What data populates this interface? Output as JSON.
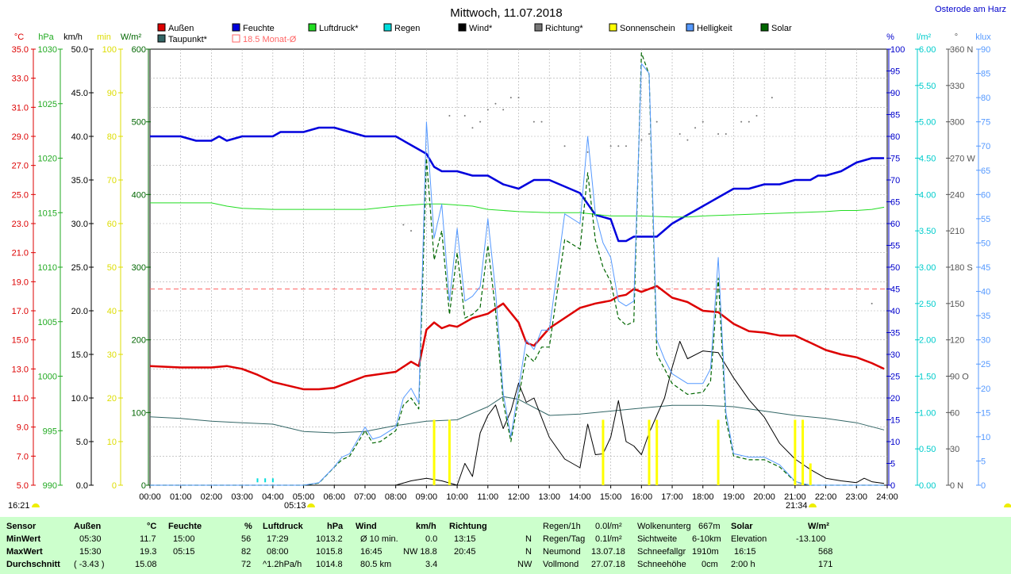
{
  "title": "Mittwoch, 11.07.2018",
  "location": "Osterode am Harz",
  "legend": [
    {
      "label": "Außen",
      "color": "#dd0000"
    },
    {
      "label": "Feuchte",
      "color": "#0000dd"
    },
    {
      "label": "Luftdruck*",
      "color": "#22dd22"
    },
    {
      "label": "Regen",
      "color": "#00dddd"
    },
    {
      "label": "Wind*",
      "color": "#000000"
    },
    {
      "label": "Richtung*",
      "color": "#777777"
    },
    {
      "label": "Sonnenschein",
      "color": "#ffff00"
    },
    {
      "label": "Helligkeit",
      "color": "#5599ff"
    },
    {
      "label": "Solar",
      "color": "#006600"
    },
    {
      "label": "Taupunkt*",
      "color": "#336666"
    },
    {
      "label": "18.5 Monat-Ø",
      "color": "#ff6666"
    }
  ],
  "axis_units": {
    "temp": "°C",
    "pressure": "hPa",
    "wind": "km/h",
    "sun": "min",
    "solar": "W/m²",
    "humidity": "%",
    "rain": "l/m²",
    "direction": "°",
    "light": "klux"
  },
  "axes": {
    "temp": [
      "35.0",
      "33.0",
      "31.0",
      "29.0",
      "27.0",
      "25.0",
      "23.0",
      "21.0",
      "19.0",
      "17.0",
      "15.0",
      "13.0",
      "11.0",
      "9.0",
      "7.0",
      "5.0"
    ],
    "pressure": [
      "1030",
      "1025",
      "1020",
      "1015",
      "1010",
      "1005",
      "1000",
      "995",
      "990"
    ],
    "wind": [
      "50.0",
      "45.0",
      "40.0",
      "35.0",
      "30.0",
      "25.0",
      "20.0",
      "15.0",
      "10.0",
      "5.0",
      "0.0"
    ],
    "sun": [
      "100",
      "90",
      "80",
      "70",
      "60",
      "50",
      "40",
      "30",
      "20",
      "10",
      "0"
    ],
    "solar": [
      "600",
      "500",
      "400",
      "300",
      "200",
      "100",
      "0"
    ],
    "humidity": [
      "100",
      "95",
      "90",
      "85",
      "80",
      "75",
      "70",
      "65",
      "60",
      "55",
      "50",
      "45",
      "40",
      "35",
      "30",
      "25",
      "20",
      "15",
      "10",
      "5",
      "0"
    ],
    "rain": [
      "6.00",
      "5.50",
      "5.00",
      "4.50",
      "4.00",
      "3.50",
      "3.00",
      "2.50",
      "2.00",
      "1.50",
      "1.00",
      "0.50",
      "0.00"
    ],
    "direction": [
      "360 N",
      "330",
      "300",
      "270 W",
      "240",
      "210",
      "180 S",
      "150",
      "120",
      "90 O",
      "60",
      "30",
      "0 N"
    ],
    "light": [
      "90",
      "85",
      "80",
      "75",
      "70",
      "65",
      "60",
      "55",
      "50",
      "45",
      "40",
      "35",
      "30",
      "25",
      "20",
      "15",
      "10",
      "5",
      "0"
    ],
    "time": [
      "00:00",
      "01:00",
      "02:00",
      "03:00",
      "04:00",
      "05:00",
      "06:00",
      "07:00",
      "08:00",
      "09:00",
      "10:00",
      "11:00",
      "12:00",
      "13:00",
      "14:00",
      "15:00",
      "16:00",
      "17:00",
      "18:00",
      "19:00",
      "20:00",
      "21:00",
      "22:00",
      "23:00",
      "24:00"
    ]
  },
  "markers": {
    "now": "16:21",
    "sunrise": "05:13",
    "sunset": "21:34"
  },
  "chart_data": {
    "type": "line",
    "title": "Mittwoch, 11.07.2018",
    "x_unit": "hours",
    "monthly_avg_temp": 18.5,
    "series": [
      {
        "name": "Außen",
        "unit": "°C",
        "color": "#dd0000",
        "x": [
          0,
          1,
          2,
          2.5,
          3,
          3.5,
          4,
          5,
          5.5,
          6,
          6.5,
          7,
          8,
          8.5,
          8.75,
          9,
          9.25,
          9.5,
          9.75,
          10,
          10.25,
          10.5,
          11,
          11.5,
          12,
          12.25,
          12.5,
          13,
          14,
          14.5,
          15,
          15.25,
          15.5,
          15.75,
          16,
          16.5,
          17,
          17.5,
          18,
          18.5,
          19,
          19.5,
          20,
          20.5,
          21,
          21.5,
          22,
          22.5,
          23,
          23.5,
          23.9
        ],
        "y": [
          13.2,
          13.1,
          13.1,
          13.2,
          13.0,
          12.6,
          12.1,
          11.6,
          11.6,
          11.7,
          12.1,
          12.5,
          12.8,
          13.5,
          13.2,
          15.7,
          16.2,
          15.8,
          16.0,
          15.9,
          16.2,
          16.5,
          16.8,
          17.5,
          16.2,
          14.8,
          14.6,
          15.8,
          17.2,
          17.5,
          17.7,
          18.0,
          18.1,
          18.5,
          18.3,
          18.7,
          17.9,
          17.6,
          17.0,
          16.9,
          16.1,
          15.6,
          15.5,
          15.3,
          15.3,
          14.8,
          14.3,
          14.0,
          13.8,
          13.4,
          13.0
        ]
      },
      {
        "name": "Feuchte",
        "unit": "%",
        "color": "#0000dd",
        "x": [
          0,
          1,
          1.5,
          2,
          2.25,
          2.5,
          3,
          3.5,
          4,
          4.25,
          4.5,
          5,
          5.5,
          5.75,
          6,
          6.5,
          7,
          7.5,
          8,
          8.5,
          9,
          9.25,
          9.5,
          10,
          10.5,
          11,
          11.5,
          12,
          12.25,
          12.5,
          13,
          14,
          14.5,
          15,
          15.25,
          15.5,
          15.75,
          16,
          16.5,
          17,
          17.5,
          18,
          18.5,
          19,
          19.5,
          20,
          20.5,
          21,
          21.5,
          21.75,
          22,
          22.5,
          23,
          23.5,
          23.9
        ],
        "y": [
          80,
          80,
          79,
          79,
          80,
          79,
          80,
          80,
          80,
          81,
          81,
          81,
          82,
          82,
          82,
          81,
          80,
          80,
          80,
          78,
          76,
          73,
          72,
          72,
          71,
          71,
          69,
          68,
          69,
          70,
          70,
          67,
          62,
          61,
          56,
          56,
          57,
          57,
          57,
          60,
          62,
          64,
          66,
          68,
          68,
          69,
          69,
          70,
          70,
          71,
          71,
          72,
          74,
          75,
          75
        ]
      },
      {
        "name": "Luftdruck*",
        "unit": "hPa",
        "color": "#22dd22",
        "x": [
          0,
          1,
          2,
          2.5,
          3,
          4,
          5,
          6,
          7,
          8,
          8.5,
          9,
          9.5,
          10,
          10.5,
          11,
          12,
          13,
          14,
          15,
          16,
          17,
          17.5,
          18,
          19,
          20,
          21,
          22,
          22.5,
          23,
          23.5,
          23.9
        ],
        "y": [
          1015.9,
          1015.9,
          1015.9,
          1015.6,
          1015.4,
          1015.3,
          1015.3,
          1015.3,
          1015.3,
          1015.6,
          1015.7,
          1015.8,
          1015.8,
          1015.7,
          1015.6,
          1015.3,
          1015.1,
          1015.0,
          1015.0,
          1014.7,
          1014.7,
          1014.6,
          1014.6,
          1014.7,
          1014.8,
          1014.9,
          1015.0,
          1015.1,
          1015.2,
          1015.2,
          1015.3,
          1015.5
        ]
      },
      {
        "name": "Taupunkt*",
        "unit": "°C",
        "color": "#336666",
        "x": [
          0,
          1,
          2,
          3,
          4,
          5,
          6,
          7,
          8,
          9,
          10,
          11,
          11.5,
          12,
          13,
          14,
          15,
          16,
          17,
          18,
          19,
          20,
          21,
          22,
          23,
          23.9
        ],
        "y": [
          9.7,
          9.6,
          9.4,
          9.3,
          9.2,
          8.7,
          8.6,
          8.7,
          9.1,
          9.4,
          9.5,
          10.4,
          11.1,
          10.9,
          9.8,
          9.9,
          10.1,
          10.3,
          10.5,
          10.5,
          10.4,
          10.1,
          9.8,
          9.6,
          9.3,
          8.8
        ]
      },
      {
        "name": "Wind*",
        "unit": "km/h",
        "color": "#000000",
        "x": [
          0,
          8,
          8.5,
          9,
          9.5,
          10,
          10.25,
          10.5,
          10.75,
          11,
          11.25,
          11.5,
          11.75,
          12,
          12.25,
          12.5,
          13,
          13.5,
          14,
          14.25,
          14.5,
          14.75,
          15,
          15.25,
          15.5,
          15.75,
          16,
          16.25,
          16.5,
          16.75,
          17,
          17.25,
          17.5,
          18,
          18.5,
          19,
          19.5,
          20,
          20.5,
          21,
          21.5,
          22,
          22.5,
          23,
          23.25,
          23.5,
          23.9
        ],
        "y": [
          0,
          0,
          0.5,
          0.8,
          0.5,
          0,
          2.5,
          1.0,
          6.0,
          8.0,
          9.2,
          6.5,
          8.5,
          11.7,
          9.5,
          10.0,
          5.5,
          3.0,
          2.0,
          7.0,
          3.5,
          3.6,
          5.5,
          9.7,
          5.0,
          4.5,
          3.5,
          6.0,
          8.0,
          10.0,
          13.5,
          16.5,
          14.5,
          15.4,
          15.2,
          12.3,
          9.8,
          7.8,
          4.8,
          3.0,
          1.8,
          0.8,
          0.5,
          0.3,
          0.8,
          0.4,
          0.2
        ]
      },
      {
        "name": "Solar",
        "unit": "W/m²",
        "color": "#006600",
        "x": [
          0,
          5,
          5.5,
          6,
          6.25,
          6.5,
          7,
          7.25,
          7.5,
          8,
          8.25,
          8.5,
          8.75,
          9,
          9.25,
          9.5,
          9.75,
          10,
          10.25,
          10.5,
          10.75,
          11,
          11.25,
          11.5,
          11.75,
          12,
          12.25,
          12.5,
          12.75,
          13,
          13.5,
          14,
          14.25,
          14.5,
          14.75,
          15,
          15.25,
          15.5,
          15.75,
          16,
          16.25,
          16.5,
          16.75,
          17,
          17.5,
          18,
          18.25,
          18.5,
          18.75,
          19,
          19.5,
          20,
          20.5,
          21,
          21.25,
          21.5,
          22,
          22.5,
          23,
          23.9
        ],
        "y": [
          0,
          0,
          3,
          25,
          35,
          40,
          75,
          58,
          60,
          75,
          110,
          120,
          105,
          450,
          310,
          350,
          235,
          320,
          230,
          235,
          245,
          330,
          240,
          115,
          60,
          120,
          180,
          170,
          190,
          190,
          338,
          325,
          430,
          337,
          300,
          280,
          230,
          220,
          225,
          595,
          565,
          180,
          160,
          140,
          125,
          128,
          143,
          285,
          90,
          40,
          35,
          35,
          25,
          5,
          2,
          0,
          0,
          0,
          0,
          0
        ]
      },
      {
        "name": "Helligkeit",
        "unit": "klux",
        "color": "#5599ff",
        "x": [
          0,
          5,
          5.5,
          6,
          6.25,
          6.5,
          7,
          7.25,
          7.5,
          8,
          8.25,
          8.5,
          8.75,
          9,
          9.25,
          9.5,
          9.75,
          10,
          10.25,
          10.5,
          10.75,
          11,
          11.25,
          11.5,
          11.75,
          12,
          12.25,
          12.5,
          12.75,
          13,
          13.5,
          14,
          14.25,
          14.5,
          14.75,
          15,
          15.25,
          15.5,
          15.75,
          16,
          16.25,
          16.5,
          16.75,
          17,
          17.5,
          18,
          18.25,
          18.5,
          18.75,
          19,
          19.5,
          20,
          20.5,
          21,
          21.25,
          21.5,
          22,
          22.5,
          23,
          23.9
        ],
        "y": [
          0,
          0,
          0.5,
          3.8,
          5.8,
          6.5,
          12,
          9.5,
          10,
          12,
          18,
          20,
          17,
          75,
          51,
          58,
          38,
          53,
          38,
          39,
          41,
          55,
          40,
          19,
          10,
          20,
          30,
          28,
          32,
          32,
          56,
          54,
          72,
          56,
          50,
          47,
          38,
          37,
          38,
          87,
          85,
          30,
          26,
          23,
          21,
          21,
          24,
          47,
          15,
          6.5,
          5.8,
          5.8,
          4.2,
          0.8,
          0.3,
          0,
          0,
          0,
          0,
          0
        ]
      },
      {
        "name": "Regen",
        "unit": "l/m²",
        "color": "#00dddd",
        "x": [
          3.5,
          3.75,
          4.0
        ],
        "y": [
          0.04,
          0.04,
          0.04
        ]
      },
      {
        "name": "Richtung*",
        "unit": "°",
        "color": "#777777",
        "x": [
          8.25,
          8.5,
          9.75,
          10.25,
          10.5,
          10.75,
          11,
          11.25,
          11.5,
          11.75,
          12,
          12.5,
          12.75,
          13.5,
          14.25,
          15,
          15.25,
          15.5,
          16,
          16.25,
          16.5,
          17.25,
          17.5,
          17.75,
          18,
          18.5,
          18.75,
          19.25,
          19.5,
          19.75,
          20.25,
          23.5
        ],
        "y": [
          215,
          210,
          305,
          305,
          295,
          300,
          310,
          315,
          310,
          320,
          320,
          300,
          300,
          280,
          275,
          280,
          280,
          280,
          285,
          290,
          300,
          290,
          285,
          295,
          300,
          290,
          290,
          300,
          300,
          305,
          320,
          150
        ]
      },
      {
        "name": "Sonnenschein",
        "unit": "min",
        "color": "#ffff00",
        "x": [
          9.25,
          9.75,
          14.75,
          16.25,
          16.5,
          18.5,
          21.0,
          21.25,
          21.5
        ],
        "y": [
          15,
          15,
          15,
          15,
          15,
          15,
          15,
          15,
          5
        ]
      }
    ]
  },
  "table": {
    "row_labels": [
      "Sensor",
      "MinWert",
      "MaxWert",
      "Durchschnitt"
    ],
    "aussen": {
      "header": "Außen",
      "unit": "°C",
      "rows": [
        [
          "05:30",
          "11.7"
        ],
        [
          "15:30",
          "19.3"
        ],
        [
          "( -3.43 )",
          "15.08"
        ]
      ]
    },
    "feuchte": {
      "header": "Feuchte",
      "unit": "%",
      "rows": [
        [
          "15:00",
          "56"
        ],
        [
          "05:15",
          "82"
        ],
        [
          "",
          "72"
        ]
      ]
    },
    "luftdruck": {
      "header": "Luftdruck",
      "unit": "hPa",
      "rows": [
        [
          "17:29",
          "1013.2"
        ],
        [
          "08:00",
          "1015.8"
        ],
        [
          "^1.2hPa/h",
          "1014.8"
        ]
      ]
    },
    "wind": {
      "header": "Wind",
      "unit": "km/h",
      "rows": [
        [
          "Ø 10 min.",
          "0.0"
        ],
        [
          "16:45",
          "NW 18.8"
        ],
        [
          "80.5 km",
          "3.4"
        ]
      ]
    },
    "richtung": {
      "header": "Richtung",
      "rows": [
        [
          "13:15",
          "N"
        ],
        [
          "20:45",
          "N"
        ],
        [
          "",
          "NW"
        ]
      ]
    },
    "regen": {
      "rows": [
        [
          "Regen/1h",
          "0.0l/m²"
        ],
        [
          "Regen/Tag",
          "0.1l/m²"
        ],
        [
          "Neumond",
          "13.07.18"
        ],
        [
          "Vollmond",
          "27.07.18"
        ]
      ]
    },
    "wolken": {
      "rows": [
        [
          "Wolkenunterg",
          "667m"
        ],
        [
          "Sichtweite",
          "6-10km"
        ],
        [
          "Schneefallgr",
          "1910m"
        ],
        [
          "Schneehöhe",
          "0cm"
        ]
      ]
    },
    "solar": {
      "header": "Solar",
      "unit": "W/m²",
      "rows": [
        [
          "Elevation",
          "-13.100"
        ],
        [
          "16:15",
          "568"
        ],
        [
          "2:00 h",
          "171"
        ]
      ]
    }
  }
}
